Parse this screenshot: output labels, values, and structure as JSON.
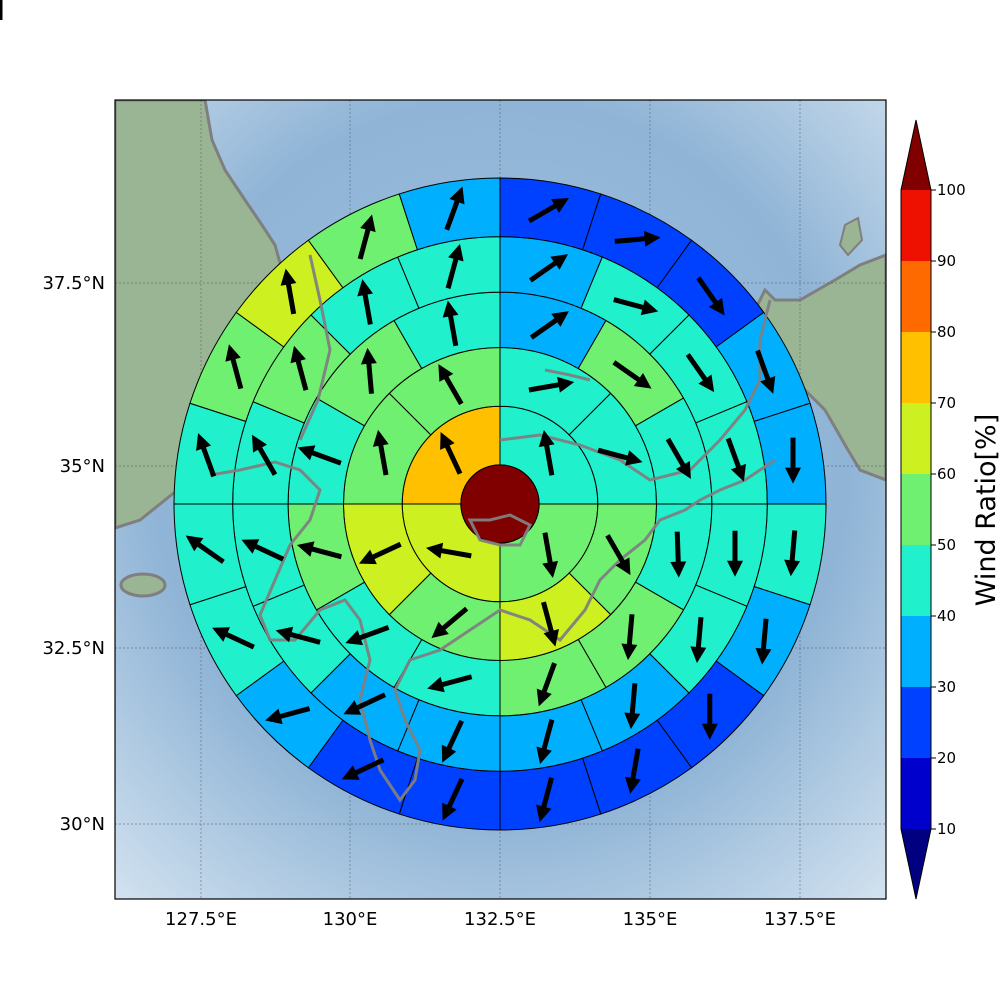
{
  "chart_data": {
    "type": "polar-sector map",
    "xlabel": "",
    "ylabel": "",
    "lon_ticks": [
      "127.5°E",
      "130°E",
      "132.5°E",
      "135°E",
      "137.5°E"
    ],
    "lat_ticks": [
      "30°N",
      "32.5°N",
      "35°N",
      "37.5°N"
    ],
    "lon_tick_values": [
      127.5,
      130,
      132.5,
      135,
      137.5
    ],
    "lat_tick_values": [
      30,
      32.5,
      35,
      37.5
    ],
    "xlim": [
      126.05,
      138.95
    ],
    "ylim": [
      28.85,
      39.7
    ],
    "grid": true,
    "center_ratio": 100,
    "colorbar": {
      "label": "Wind Ratio[%]",
      "ticks": [
        "10",
        "20",
        "30",
        "40",
        "50",
        "60",
        "70",
        "80",
        "90",
        "100"
      ],
      "tick_values": [
        10,
        20,
        30,
        40,
        50,
        60,
        70,
        80,
        90,
        100
      ],
      "colors": [
        "#0000cd",
        "#0040ff",
        "#00b0ff",
        "#20f0cc",
        "#70f070",
        "#ccf020",
        "#ffc000",
        "#ff6a00",
        "#ee1000",
        "#800000"
      ],
      "under_color": "#000080",
      "over_color": "#800000",
      "extend": "both"
    },
    "ring_radii_bounds": [
      0,
      0.12,
      0.3,
      0.48,
      0.65,
      0.82,
      1.0
    ],
    "rings": [
      {
        "sectors": 4,
        "ratios": [
          45,
          55,
          65,
          72
        ],
        "arrow_deg": [
          -10,
          170,
          280,
          335
        ]
      },
      {
        "sectors": 8,
        "ratios": [
          45,
          40,
          55,
          65,
          55,
          65,
          55,
          55
        ],
        "arrow_deg": [
          80,
          105,
          150,
          165,
          230,
          245,
          350,
          330
        ]
      },
      {
        "sectors": 12,
        "ratios": [
          35,
          50,
          45,
          42,
          52,
          50,
          48,
          45,
          50,
          45,
          52,
          45
        ],
        "arrow_deg": [
          55,
          125,
          150,
          178,
          185,
          200,
          255,
          250,
          285,
          290,
          355,
          350
        ]
      },
      {
        "sectors": 16,
        "ratios": [
          35,
          42,
          45,
          48,
          45,
          45,
          35,
          35,
          35,
          35,
          40,
          42,
          42,
          52,
          45,
          48
        ],
        "arrow_deg": [
          55,
          105,
          145,
          160,
          180,
          185,
          185,
          195,
          205,
          245,
          285,
          295,
          330,
          345,
          350,
          15
        ],
        "extra_colors": {}
      },
      {
        "sectors": 20,
        "ratios": [
          25,
          25,
          28,
          35,
          35,
          42,
          35,
          25,
          25,
          25,
          25,
          25,
          35,
          45,
          42,
          45,
          55,
          60,
          50,
          35
        ],
        "arrow_deg": [
          60,
          85,
          145,
          160,
          180,
          185,
          185,
          180,
          190,
          195,
          205,
          245,
          255,
          295,
          305,
          340,
          345,
          350,
          15,
          20
        ]
      },
      {
        "sectors": 24,
        "ratios": [
          25,
          12,
          22,
          22,
          22,
          38,
          38,
          38,
          25,
          25,
          22,
          22,
          22,
          22,
          25,
          25,
          22,
          25,
          42,
          45,
          55,
          55,
          48,
          35
        ],
        "arrow_deg": [
          60,
          65,
          125,
          150,
          160,
          175,
          180,
          180,
          185,
          195,
          205,
          205,
          250,
          255,
          275,
          290,
          295,
          335,
          340,
          350,
          345,
          355,
          15,
          20
        ]
      }
    ]
  }
}
